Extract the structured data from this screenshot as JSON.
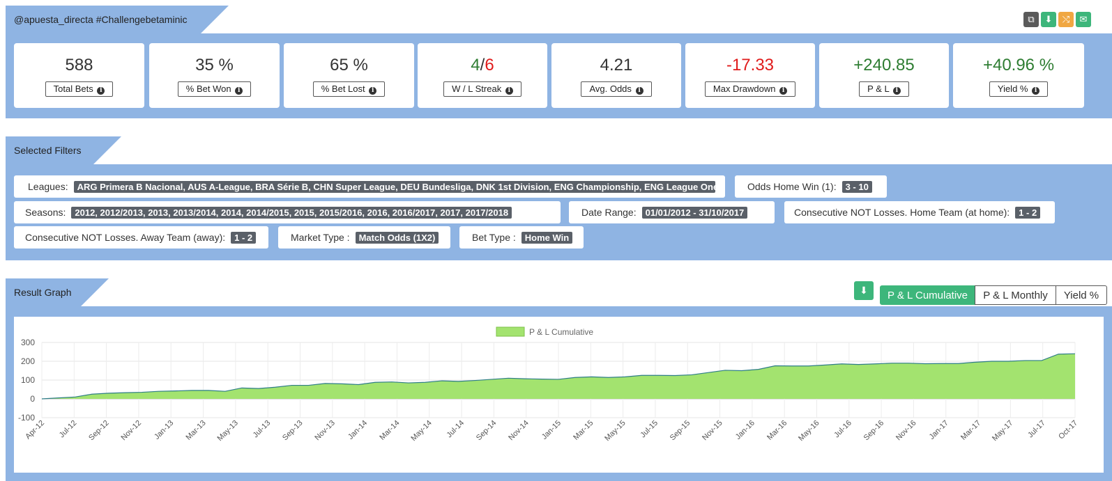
{
  "header": {
    "title": "@apuesta_directa #Challengebetaminic",
    "actions": [
      {
        "name": "copy-icon",
        "glyph": "⧉",
        "color": "#5a5a5a"
      },
      {
        "name": "download-icon",
        "glyph": "⬇",
        "color": "#3db67b"
      },
      {
        "name": "share-icon",
        "glyph": "⤭",
        "color": "#f0a742"
      },
      {
        "name": "envelope-icon",
        "glyph": "✉",
        "color": "#3db67b"
      }
    ]
  },
  "stats": [
    {
      "id": "total-bets",
      "value": "588",
      "label": "Total Bets"
    },
    {
      "id": "bet-won",
      "value": "35 %",
      "label": "% Bet Won"
    },
    {
      "id": "bet-lost",
      "value": "65 %",
      "label": "% Bet Lost"
    },
    {
      "id": "wl-streak",
      "value_win": "4",
      "value_sep": "/",
      "value_loss": "6",
      "label": "W / L Streak"
    },
    {
      "id": "avg-odds",
      "value": "4.21",
      "label": "Avg. Odds"
    },
    {
      "id": "max-drawdown",
      "value": "-17.33",
      "label": "Max Drawdown"
    },
    {
      "id": "pl",
      "value": "+240.85",
      "label": "P & L"
    },
    {
      "id": "yield",
      "value": "+40.96 %",
      "label": "Yield %"
    }
  ],
  "filters": {
    "title": "Selected Filters",
    "items": [
      {
        "label": "Leagues:",
        "value": "ARG Primera B Nacional, AUS A-League, BRA Série B, CHN Super League, DEU Bundesliga, DNK 1st Division, ENG Championship, ENG League One ..."
      },
      {
        "label": "Odds Home Win (1):",
        "value": "3 - 10"
      },
      {
        "label": "Seasons:",
        "value": "2012, 2012/2013, 2013, 2013/2014, 2014, 2014/2015, 2015, 2015/2016, 2016, 2016/2017, 2017, 2017/2018"
      },
      {
        "label": "Date Range:",
        "value": "01/01/2012 - 31/10/2017"
      },
      {
        "label": "Consecutive NOT Losses. Home Team (at home):",
        "value": "1 - 2"
      },
      {
        "label": "Consecutive NOT Losses. Away Team (away):",
        "value": "1 - 2"
      },
      {
        "label": "Market Type :",
        "value": "Match Odds (1X2)"
      },
      {
        "label": "Bet Type :",
        "value": "Home Win"
      }
    ]
  },
  "graph": {
    "title": "Result Graph",
    "tabs": [
      "P & L Cumulative",
      "P & L Monthly",
      "Yield %"
    ],
    "active_tab": "P & L Cumulative"
  },
  "chart_data": {
    "type": "area",
    "legend": "P & L Cumulative",
    "fill_color": "#a3e36f",
    "line_color": "#2e7d87",
    "ylim": [
      -100,
      300
    ],
    "yticks": [
      "300",
      "200",
      "100",
      "0",
      "-100"
    ],
    "x_labels": [
      "Apr-12",
      "Jul-12",
      "Sep-12",
      "Nov-12",
      "Jan-13",
      "Mar-13",
      "May-13",
      "Jul-13",
      "Sep-13",
      "Nov-13",
      "Jan-14",
      "Mar-14",
      "May-14",
      "Jul-14",
      "Sep-14",
      "Nov-14",
      "Jan-15",
      "Mar-15",
      "May-15",
      "Jul-15",
      "Sep-15",
      "Nov-15",
      "Jan-16",
      "Mar-16",
      "May-16",
      "Jul-16",
      "Sep-16",
      "Nov-16",
      "Jan-17",
      "Mar-17",
      "May-17",
      "Jul-17",
      "Oct-17"
    ],
    "values": [
      0,
      5,
      10,
      25,
      30,
      33,
      35,
      40,
      42,
      45,
      45,
      40,
      58,
      55,
      62,
      72,
      72,
      82,
      80,
      76,
      88,
      90,
      85,
      88,
      96,
      93,
      98,
      104,
      110,
      107,
      105,
      104,
      114,
      117,
      114,
      117,
      125,
      125,
      124,
      128,
      140,
      152,
      150,
      157,
      176,
      175,
      175,
      180,
      186,
      183,
      186,
      190,
      190,
      187,
      188,
      188,
      195,
      200,
      200,
      204,
      204,
      238,
      240
    ]
  }
}
